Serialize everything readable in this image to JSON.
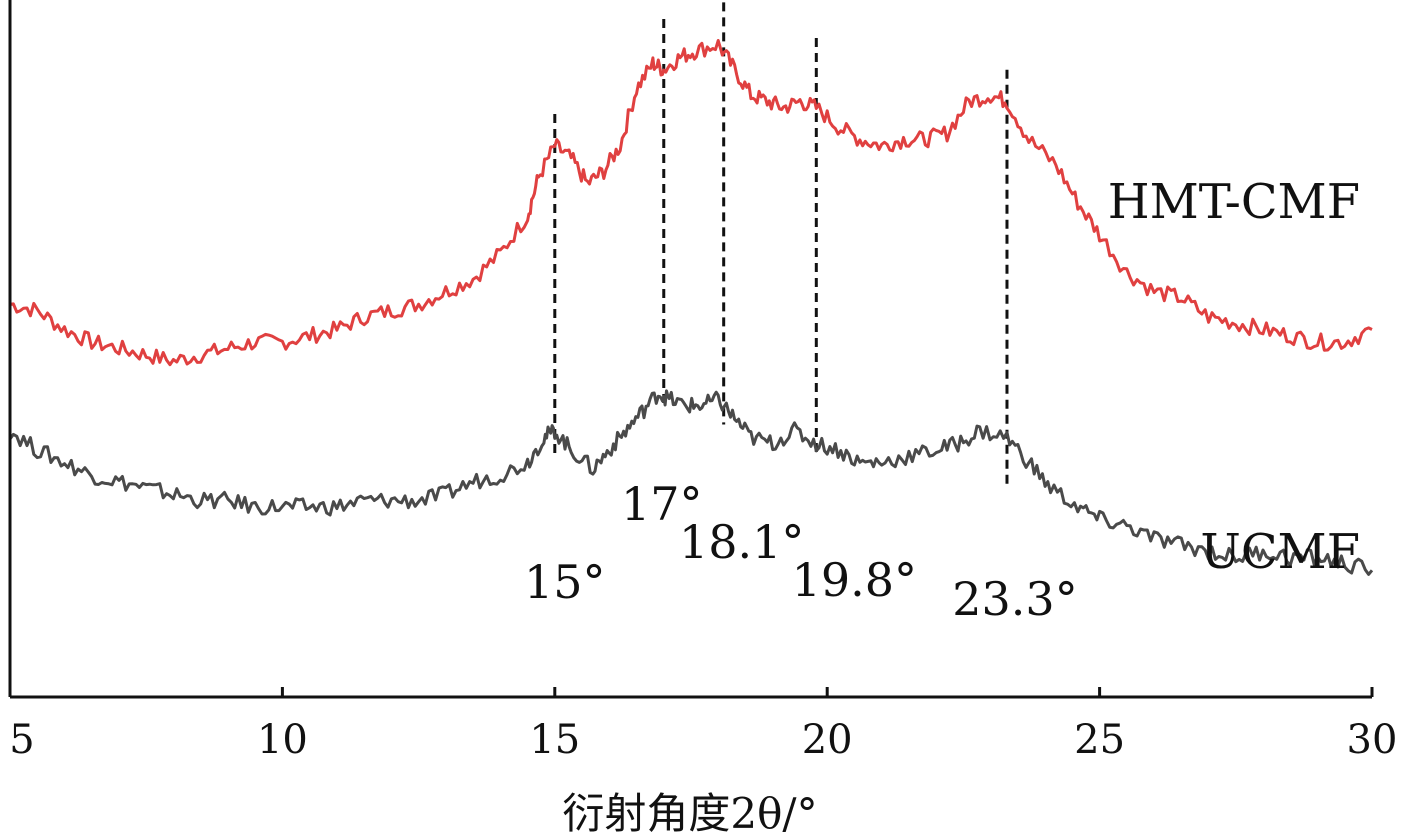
{
  "chart_data": {
    "type": "line",
    "title": "",
    "xlabel": "衍射角度2θ/°",
    "ylabel": "",
    "xlim": [
      5,
      30
    ],
    "ylim": [
      0,
      110
    ],
    "x_ticks": [
      5,
      10,
      15,
      20,
      25,
      30
    ],
    "y_ticks_shown": false,
    "grid": false,
    "legend": "none",
    "series": [
      {
        "name": "HMT-CMF",
        "color": "#e04040",
        "points": [
          [
            5.0,
            62
          ],
          [
            5.5,
            61
          ],
          [
            6.0,
            58
          ],
          [
            6.5,
            56
          ],
          [
            7.0,
            55
          ],
          [
            7.5,
            54
          ],
          [
            8.0,
            53
          ],
          [
            8.5,
            54
          ],
          [
            9.0,
            55
          ],
          [
            9.5,
            56
          ],
          [
            10.0,
            56
          ],
          [
            10.5,
            57
          ],
          [
            11.0,
            58
          ],
          [
            11.5,
            60
          ],
          [
            12.0,
            61
          ],
          [
            12.5,
            62
          ],
          [
            13.0,
            64
          ],
          [
            13.5,
            66
          ],
          [
            14.0,
            70
          ],
          [
            14.5,
            76
          ],
          [
            14.7,
            82
          ],
          [
            15.0,
            87
          ],
          [
            15.3,
            85
          ],
          [
            15.6,
            81
          ],
          [
            15.9,
            83
          ],
          [
            16.2,
            87
          ],
          [
            16.5,
            96
          ],
          [
            16.8,
            100
          ],
          [
            17.0,
            99
          ],
          [
            17.3,
            101
          ],
          [
            17.6,
            102
          ],
          [
            18.0,
            103
          ],
          [
            18.3,
            99
          ],
          [
            18.6,
            95
          ],
          [
            18.9,
            94
          ],
          [
            19.2,
            93
          ],
          [
            19.5,
            94
          ],
          [
            19.8,
            93
          ],
          [
            20.2,
            90
          ],
          [
            20.6,
            88
          ],
          [
            21.0,
            87
          ],
          [
            21.4,
            88
          ],
          [
            21.8,
            88
          ],
          [
            22.2,
            89
          ],
          [
            22.6,
            94
          ],
          [
            23.0,
            95
          ],
          [
            23.3,
            94
          ],
          [
            23.7,
            88
          ],
          [
            24.2,
            84
          ],
          [
            24.6,
            78
          ],
          [
            25.0,
            73
          ],
          [
            25.5,
            67
          ],
          [
            26.0,
            64
          ],
          [
            26.5,
            63
          ],
          [
            27.0,
            60
          ],
          [
            27.5,
            59
          ],
          [
            28.0,
            58
          ],
          [
            28.5,
            57
          ],
          [
            29.0,
            56
          ],
          [
            29.5,
            56
          ],
          [
            30.0,
            58
          ]
        ]
      },
      {
        "name": "UCMF",
        "color": "#4a4a4a",
        "points": [
          [
            5.0,
            42
          ],
          [
            5.5,
            39
          ],
          [
            6.0,
            37
          ],
          [
            6.5,
            35
          ],
          [
            7.0,
            34
          ],
          [
            7.5,
            33
          ],
          [
            8.0,
            32
          ],
          [
            8.5,
            31
          ],
          [
            9.0,
            31
          ],
          [
            9.5,
            30
          ],
          [
            10.0,
            30
          ],
          [
            10.5,
            30
          ],
          [
            11.0,
            30
          ],
          [
            11.5,
            31
          ],
          [
            12.0,
            31
          ],
          [
            12.5,
            31
          ],
          [
            13.0,
            32
          ],
          [
            13.5,
            34
          ],
          [
            14.0,
            35
          ],
          [
            14.5,
            37
          ],
          [
            14.8,
            41
          ],
          [
            15.0,
            42
          ],
          [
            15.3,
            39
          ],
          [
            15.7,
            36
          ],
          [
            16.0,
            39
          ],
          [
            16.3,
            42
          ],
          [
            16.6,
            45
          ],
          [
            16.9,
            48
          ],
          [
            17.1,
            47
          ],
          [
            17.4,
            46
          ],
          [
            17.7,
            46
          ],
          [
            18.0,
            47
          ],
          [
            18.3,
            44
          ],
          [
            18.6,
            41
          ],
          [
            19.0,
            40
          ],
          [
            19.4,
            42
          ],
          [
            19.8,
            40
          ],
          [
            20.2,
            39
          ],
          [
            20.6,
            37
          ],
          [
            21.0,
            37
          ],
          [
            21.5,
            38
          ],
          [
            22.0,
            39
          ],
          [
            22.4,
            40
          ],
          [
            22.8,
            42
          ],
          [
            23.3,
            41
          ],
          [
            23.7,
            37
          ],
          [
            24.1,
            33
          ],
          [
            24.6,
            30
          ],
          [
            25.0,
            28
          ],
          [
            25.5,
            27
          ],
          [
            26.0,
            25
          ],
          [
            26.5,
            24
          ],
          [
            27.0,
            23
          ],
          [
            27.5,
            22
          ],
          [
            28.0,
            23
          ],
          [
            28.5,
            22
          ],
          [
            29.0,
            22
          ],
          [
            29.5,
            21
          ],
          [
            30.0,
            20
          ]
        ]
      }
    ],
    "peak_markers": [
      {
        "x": 15.0,
        "label": "15°",
        "y_top": 92,
        "y_bottom": 38
      },
      {
        "x": 17.0,
        "label": "17°",
        "y_top": 107,
        "y_bottom": 46
      },
      {
        "x": 18.1,
        "label": "18.1°",
        "y_top": 112,
        "y_bottom": 43
      },
      {
        "x": 19.8,
        "label": "19.8°",
        "y_top": 104,
        "y_bottom": 38
      },
      {
        "x": 23.3,
        "label": "23.3°",
        "y_top": 99,
        "y_bottom": 33
      }
    ]
  }
}
